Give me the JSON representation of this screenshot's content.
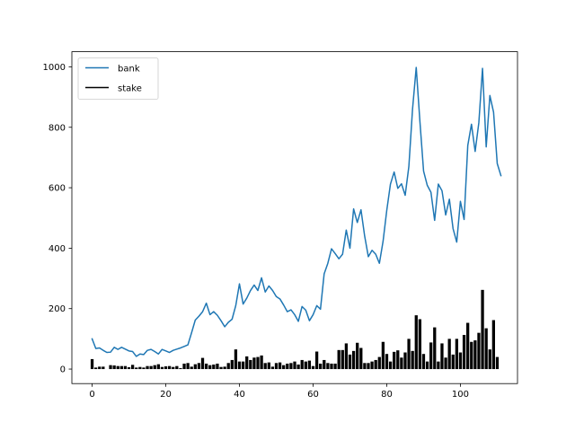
{
  "chart_data": {
    "type": "line",
    "title": "",
    "xlabel": "",
    "ylabel": "",
    "xlim": [
      -5.5,
      115.5
    ],
    "ylim": [
      -48,
      1050
    ],
    "xticks": [
      0,
      20,
      40,
      60,
      80,
      100
    ],
    "yticks": [
      0,
      200,
      400,
      600,
      800,
      1000
    ],
    "grid": false,
    "legend": "upper-left",
    "series": [
      {
        "name": "bank",
        "kind": "line",
        "color": "#1f77b4",
        "x_start": 0,
        "values": [
          100,
          68,
          70,
          62,
          55,
          56,
          72,
          65,
          72,
          66,
          60,
          58,
          42,
          50,
          48,
          62,
          65,
          58,
          50,
          65,
          60,
          55,
          62,
          66,
          70,
          75,
          80,
          120,
          162,
          175,
          190,
          218,
          180,
          190,
          178,
          160,
          140,
          155,
          165,
          210,
          282,
          215,
          235,
          260,
          278,
          260,
          302,
          255,
          275,
          260,
          240,
          232,
          212,
          190,
          196,
          180,
          158,
          207,
          195,
          160,
          180,
          210,
          198,
          315,
          350,
          398,
          382,
          365,
          380,
          460,
          400,
          530,
          485,
          527,
          440,
          372,
          393,
          380,
          350,
          423,
          525,
          612,
          652,
          598,
          613,
          575,
          670,
          860,
          998,
          820,
          655,
          608,
          585,
          492,
          612,
          590,
          510,
          562,
          465,
          420,
          555,
          495,
          740,
          810,
          720,
          815,
          995,
          735,
          905,
          850,
          680,
          640
        ]
      },
      {
        "name": "stake",
        "kind": "bar",
        "color": "#000000",
        "x_start": 0,
        "values": [
          33,
          5,
          8,
          8,
          0,
          13,
          12,
          10,
          10,
          10,
          6,
          14,
          5,
          7,
          5,
          10,
          10,
          13,
          16,
          7,
          9,
          10,
          7,
          10,
          3,
          18,
          20,
          8,
          16,
          20,
          37,
          18,
          13,
          15,
          18,
          7,
          8,
          20,
          30,
          65,
          25,
          25,
          42,
          30,
          38,
          40,
          45,
          20,
          22,
          8,
          20,
          22,
          13,
          18,
          20,
          25,
          15,
          30,
          25,
          28,
          10,
          58,
          18,
          30,
          20,
          18,
          18,
          63,
          63,
          85,
          48,
          60,
          87,
          70,
          20,
          20,
          25,
          30,
          40,
          90,
          50,
          25,
          57,
          62,
          38,
          55,
          100,
          60,
          178,
          165,
          50,
          25,
          88,
          138,
          25,
          85,
          38,
          100,
          48,
          100,
          55,
          113,
          153,
          90,
          95,
          120,
          262,
          135,
          65,
          162,
          40
        ]
      }
    ]
  }
}
